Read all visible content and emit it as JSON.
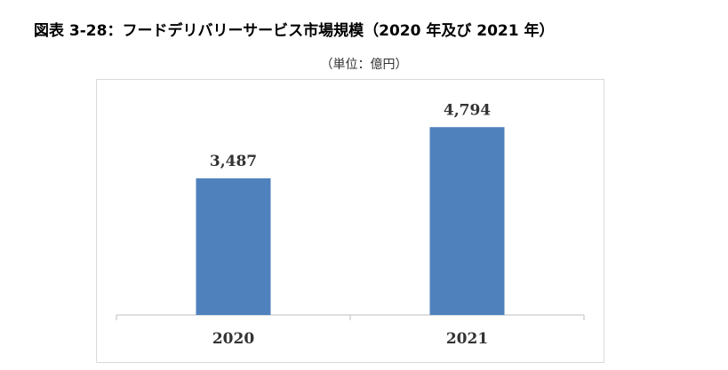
{
  "figure": {
    "title": "図表  3-28：フードデリバリーサービス市場規模（2020 年及び 2021 年）",
    "unit_note": "（単位：億円）"
  },
  "chart_data": {
    "type": "bar",
    "categories": [
      "2020",
      "2021"
    ],
    "values": [
      3487,
      4794
    ],
    "value_labels": [
      "3,487",
      "4,794"
    ],
    "title": "",
    "xlabel": "",
    "ylabel": "",
    "ylim": [
      0,
      6000
    ],
    "grid": false,
    "legend": "none",
    "bar_color": "#4f81bd"
  }
}
